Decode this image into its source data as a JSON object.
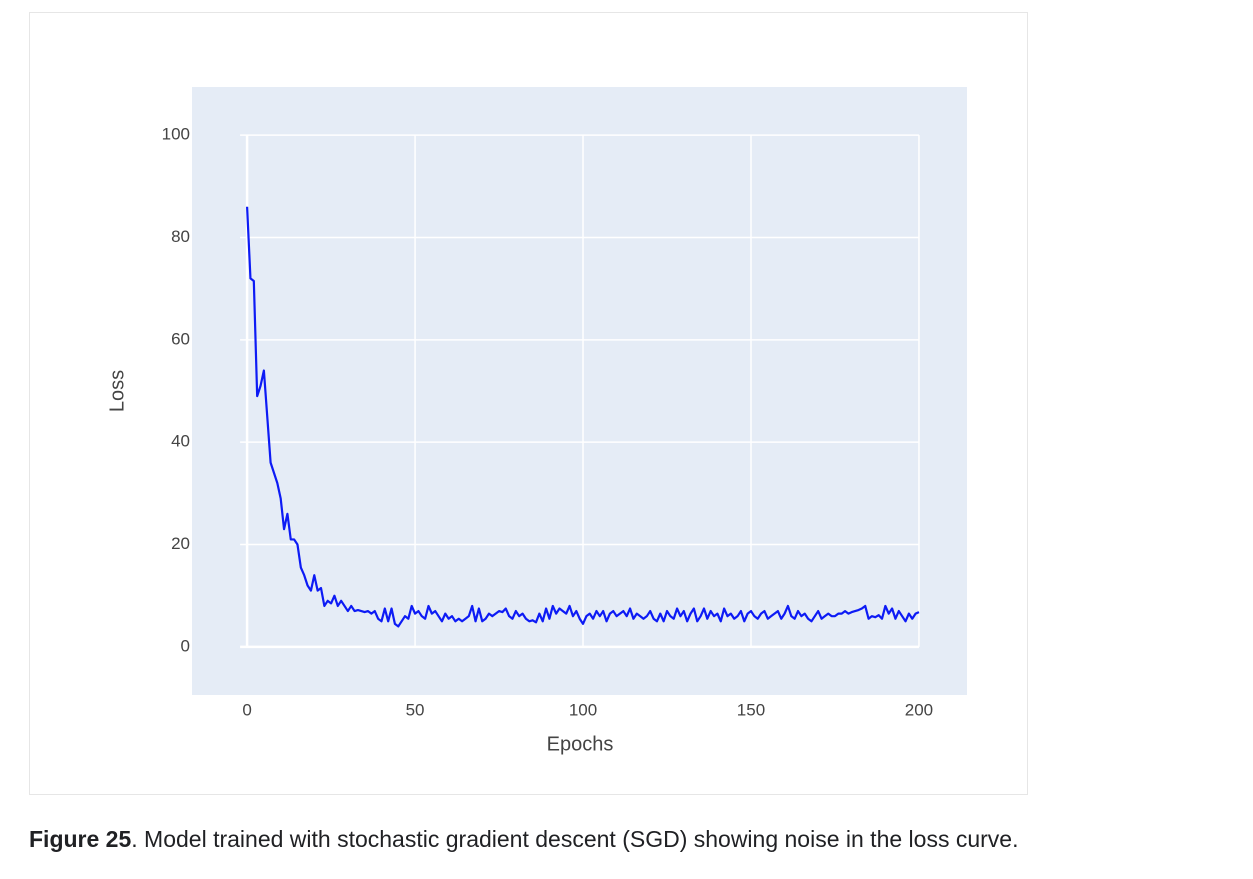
{
  "chart_data": {
    "type": "line",
    "xlabel": "Epochs",
    "ylabel": "Loss",
    "x": [
      0,
      1,
      2,
      3,
      4,
      5,
      6,
      7,
      8,
      9,
      10,
      11,
      12,
      13,
      14,
      15,
      16,
      17,
      18,
      19,
      20,
      21,
      22,
      23,
      24,
      25,
      26,
      27,
      28,
      29,
      30,
      31,
      32,
      33,
      34,
      35,
      36,
      37,
      38,
      39,
      40,
      41,
      42,
      43,
      44,
      45,
      46,
      47,
      48,
      49,
      50,
      51,
      52,
      53,
      54,
      55,
      56,
      57,
      58,
      59,
      60,
      61,
      62,
      63,
      64,
      65,
      66,
      67,
      68,
      69,
      70,
      71,
      72,
      73,
      74,
      75,
      76,
      77,
      78,
      79,
      80,
      81,
      82,
      83,
      84,
      85,
      86,
      87,
      88,
      89,
      90,
      91,
      92,
      93,
      94,
      95,
      96,
      97,
      98,
      99,
      100,
      101,
      102,
      103,
      104,
      105,
      106,
      107,
      108,
      109,
      110,
      111,
      112,
      113,
      114,
      115,
      116,
      117,
      118,
      119,
      120,
      121,
      122,
      123,
      124,
      125,
      126,
      127,
      128,
      129,
      130,
      131,
      132,
      133,
      134,
      135,
      136,
      137,
      138,
      139,
      140,
      141,
      142,
      143,
      144,
      145,
      146,
      147,
      148,
      149,
      150,
      151,
      152,
      153,
      154,
      155,
      156,
      157,
      158,
      159,
      160,
      161,
      162,
      163,
      164,
      165,
      166,
      167,
      168,
      169,
      170,
      171,
      172,
      173,
      174,
      175,
      176,
      177,
      178,
      179,
      180,
      181,
      182,
      183,
      184,
      185,
      186,
      187,
      188,
      189,
      190,
      191,
      192,
      193,
      194,
      195,
      196,
      197,
      198,
      199,
      200
    ],
    "series": [
      {
        "name": "Loss",
        "color": "#0d1bf5",
        "values": [
          86,
          72,
          71.5,
          49,
          51,
          54,
          45,
          36,
          34,
          32,
          29,
          23,
          26,
          21,
          21,
          20,
          15.5,
          14,
          12,
          11,
          14,
          11,
          11.5,
          8,
          9,
          8.5,
          10,
          8,
          9,
          8,
          7,
          8,
          7,
          7.2,
          7,
          6.8,
          7,
          6.5,
          7,
          5.5,
          5,
          7.5,
          5,
          7.5,
          4.5,
          4,
          5,
          6,
          5.5,
          8,
          6.5,
          7,
          6,
          5.5,
          8,
          6.5,
          7,
          6,
          5,
          6.5,
          5.5,
          6,
          5,
          5.5,
          5,
          5.5,
          6,
          8,
          5,
          7.5,
          5,
          5.5,
          6.5,
          6,
          6.5,
          7,
          6.8,
          7.5,
          6,
          5.5,
          7,
          6,
          6.5,
          5.5,
          5,
          5.2,
          4.8,
          6.5,
          5,
          7.5,
          5.5,
          8,
          6.5,
          7.5,
          7,
          6.5,
          8,
          6,
          7,
          5.5,
          4.5,
          6,
          6.5,
          5.5,
          7,
          6,
          7,
          5,
          6.5,
          7,
          6,
          6.5,
          7,
          6,
          7.5,
          5.5,
          6.5,
          6,
          5.5,
          6,
          7,
          5.5,
          5,
          6.5,
          5,
          7,
          6,
          5.5,
          7.5,
          6,
          7,
          5,
          6.5,
          7.5,
          5,
          6,
          7.5,
          5.5,
          7,
          6,
          6.5,
          5,
          7.5,
          6,
          6.5,
          5.5,
          6,
          7,
          5,
          6.5,
          7,
          6,
          5.5,
          6.5,
          7,
          5.5,
          6,
          6.5,
          7,
          5.5,
          6.5,
          8,
          6,
          5.5,
          7,
          6,
          6.5,
          5.5,
          5,
          6,
          7,
          5.5,
          6,
          6.5,
          6,
          6,
          6.5,
          6.5,
          7,
          6.5,
          6.8,
          7,
          7.2,
          7.5,
          8,
          5.5,
          6,
          5.8,
          6.2,
          5.5,
          8,
          6.5,
          7.5,
          5.5,
          7,
          6,
          5,
          6.5,
          5.5,
          6.5,
          6.8
        ]
      }
    ],
    "xlim": [
      -16.4,
      214.3
    ],
    "ylim": [
      -9.4,
      109.4
    ],
    "xticks": [
      0,
      50,
      100,
      150,
      200
    ],
    "yticks": [
      0,
      20,
      40,
      60,
      80,
      100
    ],
    "grid": true
  },
  "caption": {
    "label": "Figure 25",
    "text": ". Model trained with stochastic gradient descent (SGD) showing noise in the loss curve."
  }
}
